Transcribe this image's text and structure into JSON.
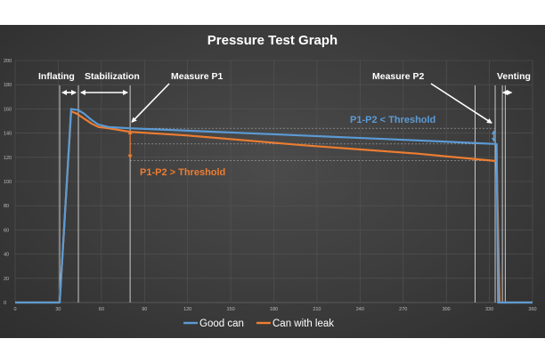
{
  "chart_data": {
    "type": "line",
    "title": "Pressure Test Graph",
    "xlim": [
      0,
      360
    ],
    "ylim": [
      0,
      200
    ],
    "x_ticks": [
      0,
      30,
      60,
      90,
      120,
      150,
      180,
      210,
      240,
      270,
      300,
      330,
      360
    ],
    "y_ticks": [
      0,
      20,
      40,
      60,
      80,
      100,
      120,
      140,
      160,
      180,
      200
    ],
    "series": [
      {
        "name": "Good can",
        "color": "#5b9bd5",
        "x": [
          0,
          31,
          39,
          44,
          48,
          53,
          58,
          65,
          80,
          120,
          200,
          280,
          334,
          335,
          336,
          338,
          360
        ],
        "y": [
          0,
          0,
          160,
          159,
          156,
          151,
          147,
          145,
          144,
          142,
          138,
          134,
          131,
          131,
          0,
          0,
          0
        ]
      },
      {
        "name": "Can with leak",
        "color": "#ed7d31",
        "x": [
          0,
          31,
          39,
          43,
          48,
          53,
          58,
          65,
          80,
          120,
          200,
          280,
          334,
          335,
          337,
          360
        ],
        "y": [
          0,
          0,
          158,
          156,
          152,
          148,
          145,
          144,
          141,
          138,
          130,
          123,
          117,
          117,
          0,
          0
        ]
      }
    ],
    "phases": {
      "inflating": "Inflating",
      "stabilization": "Stabilization",
      "measure_p1": "Measure P1",
      "measure_p2": "Measure P2",
      "venting": "Venting"
    },
    "annotations": {
      "good": "P1-P2 < Threshold",
      "leak": "P1-P2 > Threshold"
    },
    "markers_x": [
      31,
      44,
      80,
      320,
      334,
      339,
      341
    ],
    "legend": [
      "Good can",
      "Can with leak"
    ]
  }
}
